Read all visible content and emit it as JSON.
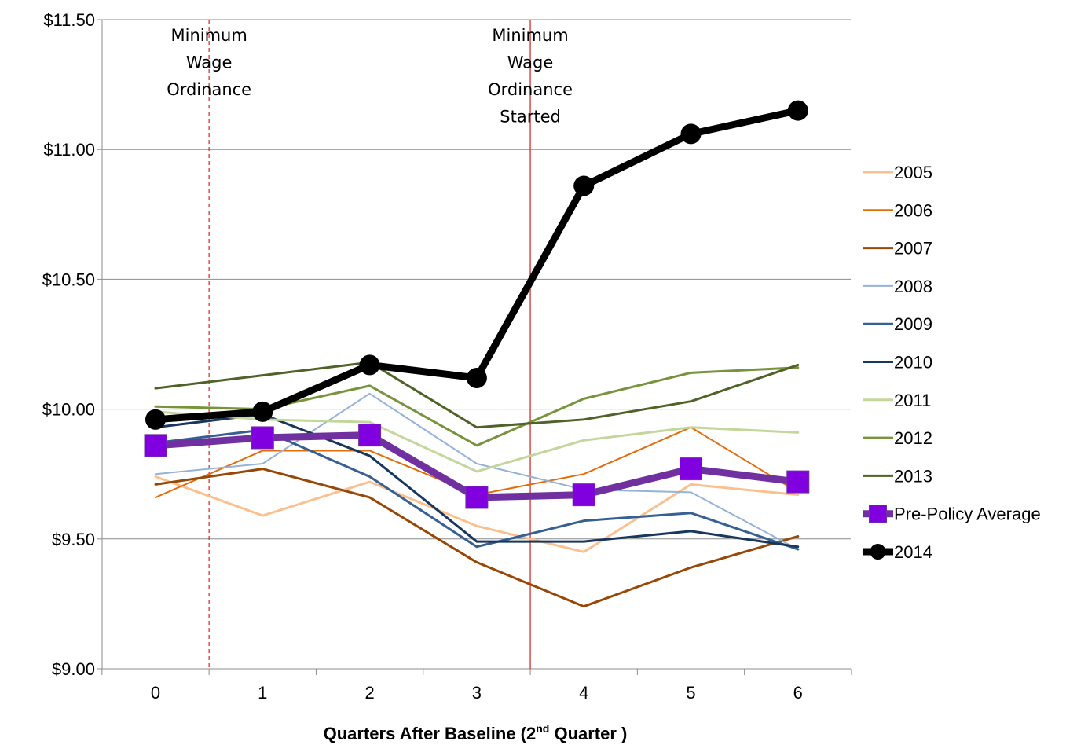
{
  "chart_data": {
    "type": "line",
    "title": "",
    "xlabel": "Quarters After Baseline (2nd Quarter )",
    "xlabel_parts": {
      "before": "Quarters After Baseline (2",
      "sup": "nd",
      "after": " Quarter )"
    },
    "ylabel": "",
    "x": [
      0,
      1,
      2,
      3,
      4,
      5,
      6
    ],
    "x_tick_labels": [
      "0",
      "1",
      "2",
      "3",
      "4",
      "5",
      "6"
    ],
    "ylim": [
      9.0,
      11.5
    ],
    "y_ticks": [
      9.0,
      9.5,
      10.0,
      10.5,
      11.0,
      11.5
    ],
    "y_tick_labels": [
      "$9.00",
      "$9.50",
      "$10.00",
      "$10.50",
      "$11.00",
      "$11.50"
    ],
    "grid": "horizontal",
    "legend_position": "right",
    "series": [
      {
        "name": "2005",
        "color": "#FAC090",
        "width": 3,
        "marker": "none",
        "values": [
          9.74,
          9.59,
          9.72,
          9.55,
          9.45,
          9.71,
          9.67
        ]
      },
      {
        "name": "2006",
        "color": "#E36C0A",
        "width": 2,
        "marker": "none",
        "values": [
          9.66,
          9.84,
          9.84,
          9.67,
          9.75,
          9.93,
          9.68
        ]
      },
      {
        "name": "2007",
        "color": "#974806",
        "width": 3,
        "marker": "none",
        "values": [
          9.71,
          9.77,
          9.66,
          9.41,
          9.24,
          9.39,
          9.51
        ]
      },
      {
        "name": "2008",
        "color": "#95B3D7",
        "width": 2,
        "marker": "none",
        "values": [
          9.75,
          9.79,
          10.06,
          9.79,
          9.69,
          9.68,
          9.46
        ]
      },
      {
        "name": "2009",
        "color": "#366092",
        "width": 3,
        "marker": "none",
        "values": [
          9.87,
          9.92,
          9.74,
          9.47,
          9.57,
          9.6,
          9.46
        ]
      },
      {
        "name": "2010",
        "color": "#17375E",
        "width": 3,
        "marker": "none",
        "values": [
          9.93,
          9.98,
          9.82,
          9.49,
          9.49,
          9.53,
          9.47
        ]
      },
      {
        "name": "2011",
        "color": "#C3D69B",
        "width": 3,
        "marker": "none",
        "values": [
          9.99,
          9.96,
          9.95,
          9.76,
          9.88,
          9.93,
          9.91
        ]
      },
      {
        "name": "2012",
        "color": "#77933C",
        "width": 3,
        "marker": "none",
        "values": [
          10.01,
          10.0,
          10.09,
          9.86,
          10.04,
          10.14,
          10.16
        ]
      },
      {
        "name": "2013",
        "color": "#4F6228",
        "width": 3,
        "marker": "none",
        "values": [
          10.08,
          10.13,
          10.18,
          9.93,
          9.96,
          10.03,
          10.17
        ]
      },
      {
        "name": "Pre-Policy Average",
        "color": "#7030A0",
        "marker_color": "#8000E0",
        "width": 9,
        "marker": "square",
        "values": [
          9.86,
          9.89,
          9.9,
          9.66,
          9.67,
          9.77,
          9.72
        ]
      },
      {
        "name": "2014",
        "color": "#000000",
        "marker_color": "#000000",
        "width": 9,
        "marker": "circle",
        "values": [
          9.96,
          9.99,
          10.17,
          10.12,
          10.86,
          11.06,
          11.15
        ]
      }
    ],
    "annotations": [
      {
        "id": "ordinance",
        "lines": [
          "Minimum",
          "Wage",
          "Ordinance"
        ],
        "x": 0.5,
        "line_style": "dashed",
        "color": "#E03030"
      },
      {
        "id": "ordinance-started",
        "lines": [
          "Minimum",
          "Wage",
          "Ordinance",
          "Started"
        ],
        "x": 3.5,
        "line_style": "solid",
        "color": "#D03030"
      }
    ]
  }
}
